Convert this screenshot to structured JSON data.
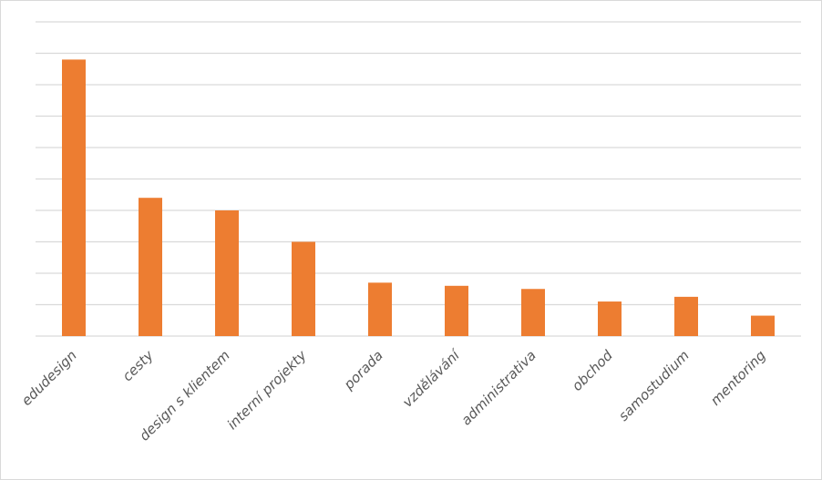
{
  "chart_data": {
    "type": "bar",
    "title": "",
    "xlabel": "",
    "ylabel": "",
    "categories": [
      "edudesign",
      "cesty",
      "design s klientem",
      "interní projekty",
      "porada",
      "vzdělávání",
      "administrativa",
      "obchod",
      "samostudium",
      "mentoring"
    ],
    "values": [
      8.8,
      4.4,
      4.0,
      3.0,
      1.7,
      1.6,
      1.5,
      1.1,
      1.25,
      0.65
    ],
    "ylim": [
      0,
      10
    ],
    "y_gridlines": 10,
    "y_tick_labels_shown": false,
    "grid": true,
    "legend": "none",
    "bar_color": "#ED7D31",
    "grid_color": "#d9d9d9"
  }
}
